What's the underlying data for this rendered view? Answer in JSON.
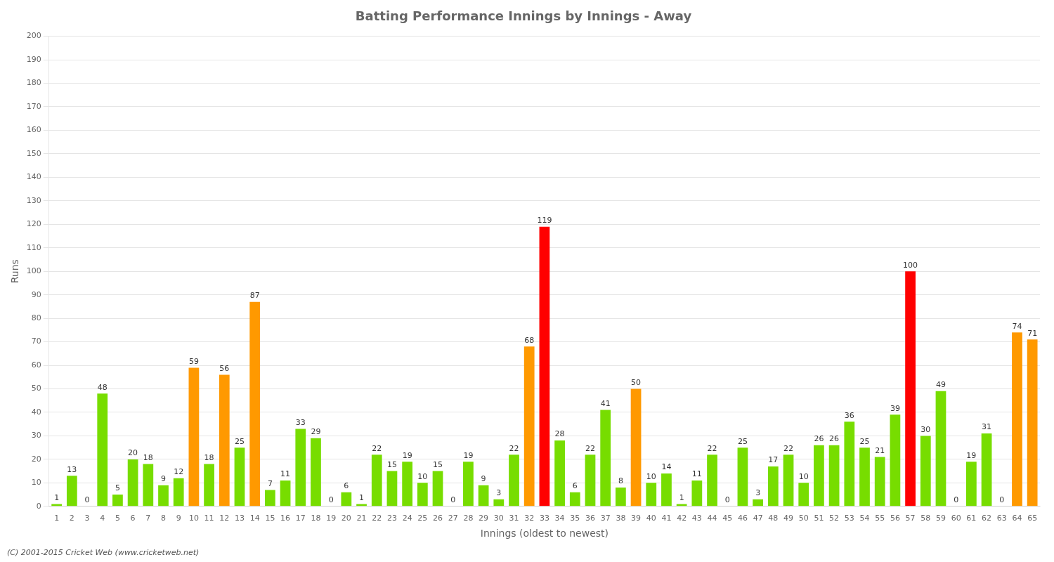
{
  "chart_data": {
    "type": "bar",
    "title": "Batting Performance Innings by Innings - Away",
    "x_label": "Innings (oldest to newest)",
    "y_label": "Runs",
    "categories": [
      "1",
      "2",
      "3",
      "4",
      "5",
      "6",
      "7",
      "8",
      "9",
      "10",
      "11",
      "12",
      "13",
      "14",
      "15",
      "16",
      "17",
      "18",
      "19",
      "20",
      "21",
      "22",
      "23",
      "24",
      "25",
      "26",
      "27",
      "28",
      "29",
      "30",
      "31",
      "32",
      "33",
      "34",
      "35",
      "36",
      "37",
      "38",
      "39",
      "40",
      "41",
      "42",
      "43",
      "44",
      "45",
      "46",
      "47",
      "48",
      "49",
      "50",
      "51",
      "52",
      "53",
      "54",
      "55",
      "56",
      "57",
      "58",
      "59",
      "60",
      "61",
      "62",
      "63",
      "64",
      "65"
    ],
    "values": [
      1,
      13,
      0,
      48,
      5,
      20,
      18,
      9,
      12,
      59,
      18,
      56,
      25,
      87,
      7,
      11,
      33,
      29,
      0,
      6,
      1,
      22,
      15,
      19,
      10,
      15,
      0,
      19,
      9,
      3,
      22,
      68,
      119,
      28,
      6,
      22,
      41,
      8,
      50,
      10,
      14,
      1,
      11,
      22,
      0,
      25,
      3,
      17,
      22,
      10,
      26,
      26,
      36,
      25,
      21,
      39,
      100,
      30,
      49,
      0,
      19,
      31,
      0,
      74,
      71
    ],
    "colors": [
      "#77dd00",
      "#77dd00",
      "#77dd00",
      "#77dd00",
      "#77dd00",
      "#77dd00",
      "#77dd00",
      "#77dd00",
      "#77dd00",
      "#ff9900",
      "#77dd00",
      "#ff9900",
      "#77dd00",
      "#ff9900",
      "#77dd00",
      "#77dd00",
      "#77dd00",
      "#77dd00",
      "#77dd00",
      "#77dd00",
      "#77dd00",
      "#77dd00",
      "#77dd00",
      "#77dd00",
      "#77dd00",
      "#77dd00",
      "#77dd00",
      "#77dd00",
      "#77dd00",
      "#77dd00",
      "#77dd00",
      "#ff9900",
      "#ff0000",
      "#77dd00",
      "#77dd00",
      "#77dd00",
      "#77dd00",
      "#77dd00",
      "#ff9900",
      "#77dd00",
      "#77dd00",
      "#77dd00",
      "#77dd00",
      "#77dd00",
      "#77dd00",
      "#77dd00",
      "#77dd00",
      "#77dd00",
      "#77dd00",
      "#77dd00",
      "#77dd00",
      "#77dd00",
      "#77dd00",
      "#77dd00",
      "#77dd00",
      "#77dd00",
      "#ff0000",
      "#77dd00",
      "#77dd00",
      "#77dd00",
      "#77dd00",
      "#77dd00",
      "#77dd00",
      "#ff9900",
      "#ff9900"
    ],
    "ylim": [
      0,
      200
    ],
    "yticks": [
      0,
      10,
      20,
      30,
      40,
      50,
      60,
      70,
      80,
      90,
      100,
      110,
      120,
      130,
      140,
      150,
      160,
      170,
      180,
      190,
      200
    ],
    "grid": true,
    "data_labels": true,
    "annotations": [
      "(C) 2001-2015 Cricket Web (www.cricketweb.net)"
    ]
  }
}
